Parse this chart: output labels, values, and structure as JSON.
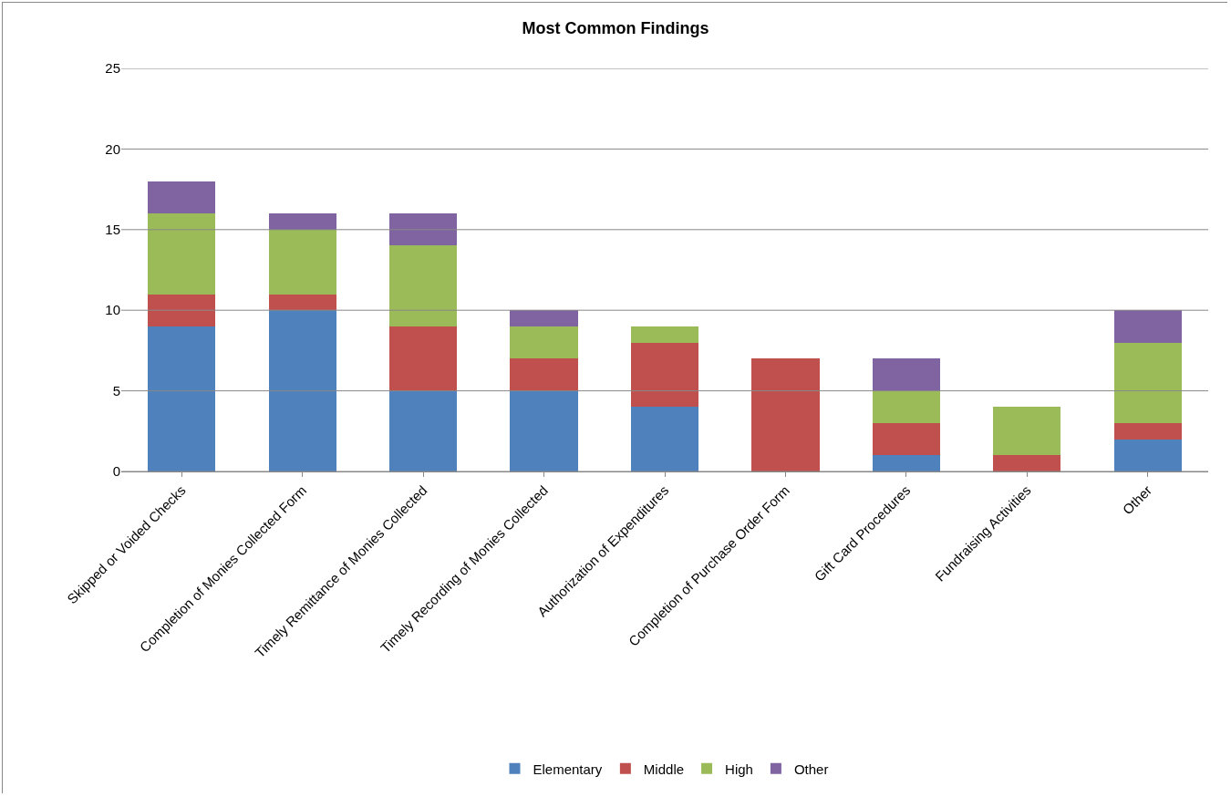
{
  "chart_data": {
    "type": "bar",
    "title": "Most Common Findings",
    "categories": [
      "Skipped or Voided Checks",
      "Completion of Monies Collected Form",
      "Timely Remittance of Monies Collected",
      "Timely Recording of Monies Collected",
      "Authorization of Expenditures",
      "Completion of Purchase Order Form",
      "Gift Card Procedures",
      "Fundraising Activities",
      "Other"
    ],
    "series": [
      {
        "name": "Elementary",
        "color": "#4f81bd",
        "values": [
          9,
          10,
          5,
          5,
          4,
          0,
          1,
          0,
          2
        ]
      },
      {
        "name": "Middle",
        "color": "#c0504d",
        "values": [
          2,
          1,
          4,
          2,
          4,
          7,
          2,
          1,
          1
        ]
      },
      {
        "name": "High",
        "color": "#9bbb59",
        "values": [
          5,
          4,
          5,
          2,
          1,
          0,
          2,
          3,
          5
        ]
      },
      {
        "name": "Other",
        "color": "#8064a2",
        "values": [
          2,
          1,
          2,
          1,
          0,
          0,
          2,
          0,
          2
        ]
      }
    ],
    "stacked": true,
    "ylim": [
      0,
      25
    ],
    "yticks": [
      0,
      5,
      10,
      15,
      20,
      25
    ],
    "grid": "y",
    "legend": "bottom"
  }
}
